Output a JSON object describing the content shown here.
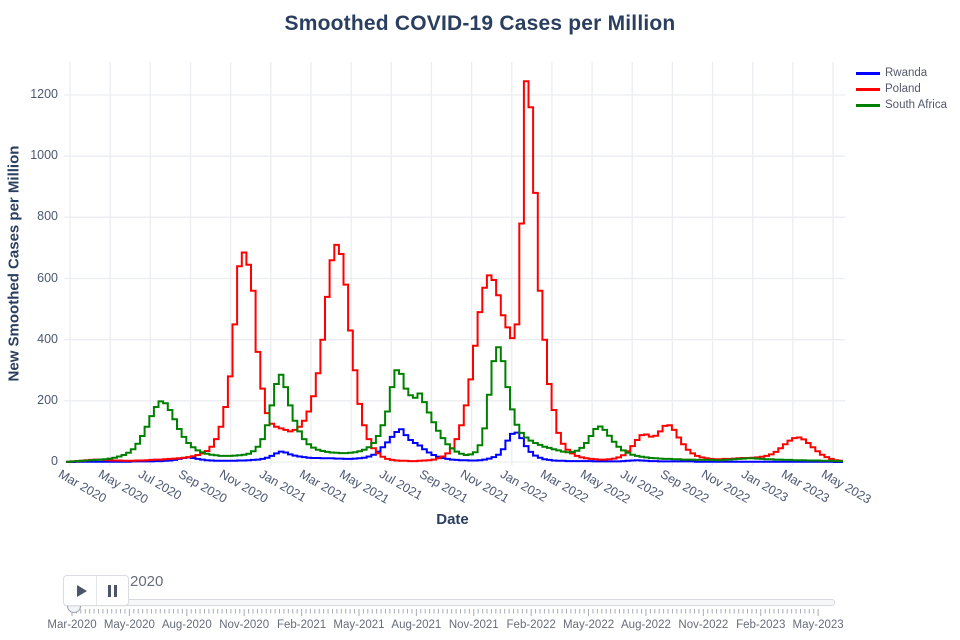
{
  "chart_data": {
    "type": "line",
    "line_shape": "step-hv",
    "title": "Smoothed COVID-19 Cases per Million",
    "xlabel": "Date",
    "ylabel": "New Smoothed Cases per Million",
    "x_unit": "weeks starting 2020-03-01, one point per week",
    "xlim": [
      "Mar 2020",
      "May 2023"
    ],
    "ylim": [
      0,
      1300
    ],
    "grid": true,
    "legend_position": "top-right",
    "yticks": [
      0,
      200,
      400,
      600,
      800,
      1000,
      1200
    ],
    "xticks": [
      "Mar 2020",
      "May 2020",
      "Jul 2020",
      "Sep 2020",
      "Nov 2020",
      "Jan 2021",
      "Mar 2021",
      "May 2021",
      "Jul 2021",
      "Sep 2021",
      "Nov 2021",
      "Jan 2022",
      "Mar 2022",
      "May 2022",
      "Jul 2022",
      "Sep 2022",
      "Nov 2022",
      "Jan 2023",
      "Mar 2023",
      "May 2023"
    ],
    "series": [
      {
        "name": "Rwanda",
        "color": "#0000ff",
        "values": [
          0,
          0,
          1,
          1,
          1,
          1,
          1,
          1,
          1,
          1,
          1,
          1,
          1,
          1,
          2,
          2,
          2,
          2,
          2,
          3,
          3,
          4,
          5,
          7,
          10,
          13,
          15,
          13,
          10,
          8,
          6,
          5,
          4,
          4,
          4,
          4,
          4,
          5,
          5,
          6,
          7,
          8,
          10,
          14,
          20,
          28,
          34,
          31,
          25,
          21,
          18,
          16,
          14,
          13,
          13,
          12,
          12,
          12,
          11,
          11,
          10,
          10,
          11,
          12,
          14,
          18,
          24,
          34,
          48,
          64,
          82,
          98,
          107,
          88,
          72,
          62,
          54,
          42,
          31,
          23,
          17,
          13,
          10,
          8,
          7,
          6,
          6,
          5,
          5,
          6,
          8,
          11,
          16,
          24,
          42,
          70,
          92,
          96,
          78,
          52,
          33,
          21,
          14,
          9,
          7,
          5,
          4,
          4,
          3,
          3,
          3,
          3,
          3,
          3,
          2,
          2,
          2,
          2,
          2,
          2,
          3,
          4,
          5,
          6,
          5,
          4,
          3,
          3,
          2,
          2,
          2,
          2,
          2,
          2,
          2,
          2,
          1,
          1,
          1,
          1,
          1,
          1,
          1,
          1,
          1,
          1,
          1,
          1,
          1,
          1,
          1,
          1,
          1,
          1,
          1,
          1,
          1,
          1,
          1,
          1,
          1,
          1,
          1,
          1,
          1,
          1,
          0,
          0
        ]
      },
      {
        "name": "Poland",
        "color": "#ff0000",
        "values": [
          1,
          2,
          3,
          4,
          6,
          7,
          8,
          8,
          7,
          6,
          5,
          5,
          4,
          4,
          4,
          5,
          5,
          6,
          7,
          8,
          8,
          9,
          10,
          11,
          12,
          14,
          16,
          19,
          23,
          28,
          36,
          50,
          75,
          115,
          180,
          280,
          450,
          640,
          685,
          645,
          560,
          360,
          240,
          160,
          125,
          115,
          110,
          105,
          100,
          105,
          115,
          135,
          165,
          215,
          290,
          400,
          540,
          660,
          710,
          680,
          580,
          430,
          300,
          190,
          120,
          75,
          45,
          28,
          17,
          10,
          7,
          5,
          4,
          4,
          3,
          3,
          4,
          5,
          6,
          8,
          12,
          18,
          28,
          45,
          75,
          120,
          185,
          270,
          380,
          490,
          570,
          610,
          595,
          545,
          480,
          440,
          405,
          450,
          780,
          1245,
          1160,
          880,
          560,
          400,
          255,
          170,
          95,
          60,
          40,
          28,
          20,
          15,
          12,
          10,
          9,
          8,
          8,
          9,
          11,
          15,
          22,
          35,
          52,
          72,
          88,
          90,
          83,
          86,
          100,
          118,
          120,
          105,
          80,
          58,
          40,
          28,
          20,
          15,
          12,
          10,
          9,
          9,
          10,
          10,
          11,
          12,
          13,
          13,
          14,
          15,
          17,
          20,
          25,
          33,
          45,
          58,
          70,
          78,
          80,
          74,
          62,
          48,
          35,
          24,
          16,
          10,
          6,
          4
        ]
      },
      {
        "name": "South Africa",
        "color": "#008000",
        "values": [
          1,
          2,
          3,
          4,
          5,
          6,
          7,
          8,
          9,
          11,
          14,
          18,
          23,
          30,
          42,
          60,
          85,
          115,
          150,
          180,
          198,
          192,
          170,
          140,
          108,
          82,
          62,
          48,
          38,
          32,
          27,
          24,
          22,
          20,
          20,
          20,
          21,
          22,
          24,
          27,
          35,
          50,
          75,
          120,
          185,
          255,
          285,
          245,
          185,
          135,
          100,
          75,
          58,
          47,
          40,
          36,
          33,
          31,
          30,
          29,
          29,
          30,
          32,
          35,
          40,
          48,
          62,
          85,
          120,
          165,
          245,
          300,
          288,
          240,
          218,
          210,
          224,
          196,
          162,
          130,
          102,
          78,
          58,
          44,
          34,
          27,
          23,
          25,
          32,
          55,
          110,
          220,
          330,
          375,
          330,
          245,
          172,
          122,
          95,
          80,
          70,
          62,
          56,
          50,
          46,
          42,
          38,
          34,
          32,
          33,
          37,
          46,
          62,
          85,
          108,
          116,
          105,
          86,
          66,
          50,
          38,
          30,
          24,
          20,
          17,
          15,
          13,
          12,
          11,
          10,
          10,
          9,
          9,
          8,
          8,
          8,
          7,
          7,
          7,
          7,
          6,
          6,
          7,
          8,
          9,
          10,
          11,
          12,
          12,
          11,
          10,
          9,
          9,
          8,
          8,
          7,
          7,
          6,
          6,
          6,
          5,
          5,
          5,
          4,
          4,
          4,
          3,
          3
        ]
      }
    ]
  },
  "slider": {
    "current_label": "2020",
    "frame_count": 170,
    "tick_labels": [
      "Mar-2020",
      "May-2020",
      "Aug-2020",
      "Nov-2020",
      "Feb-2021",
      "May-2021",
      "Aug-2021",
      "Nov-2021",
      "Feb-2022",
      "May-2022",
      "Aug-2022",
      "Nov-2022",
      "Feb-2023",
      "May-2023"
    ]
  },
  "colors": {
    "title_text": "#2a3f5f",
    "tick_text": "#4c5773",
    "grid": "#ebedf0",
    "slider_text": "#666d7a"
  }
}
